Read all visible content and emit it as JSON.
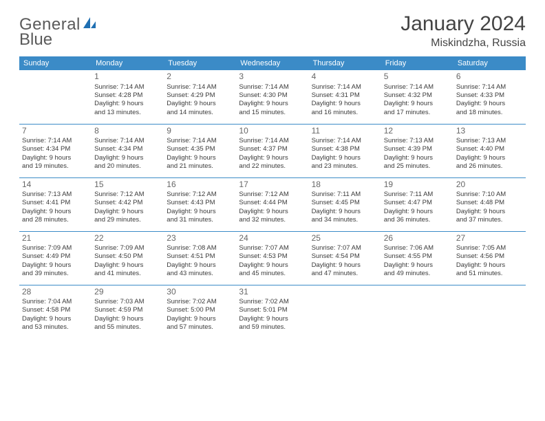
{
  "logo": {
    "word1": "General",
    "word2": "Blue"
  },
  "title": "January 2024",
  "location": "Miskindzha, Russia",
  "day_headers": [
    "Sunday",
    "Monday",
    "Tuesday",
    "Wednesday",
    "Thursday",
    "Friday",
    "Saturday"
  ],
  "colors": {
    "header_bg": "#3b8bc7",
    "header_text": "#ffffff",
    "rule": "#3b8bc7",
    "text": "#3a3a3a",
    "daynum": "#666666",
    "logo_gray": "#5a5a5a",
    "logo_blue": "#1f6fb2"
  },
  "weeks": [
    [
      {
        "n": "",
        "a": "",
        "b": "",
        "c": "",
        "d": ""
      },
      {
        "n": "1",
        "a": "Sunrise: 7:14 AM",
        "b": "Sunset: 4:28 PM",
        "c": "Daylight: 9 hours",
        "d": "and 13 minutes."
      },
      {
        "n": "2",
        "a": "Sunrise: 7:14 AM",
        "b": "Sunset: 4:29 PM",
        "c": "Daylight: 9 hours",
        "d": "and 14 minutes."
      },
      {
        "n": "3",
        "a": "Sunrise: 7:14 AM",
        "b": "Sunset: 4:30 PM",
        "c": "Daylight: 9 hours",
        "d": "and 15 minutes."
      },
      {
        "n": "4",
        "a": "Sunrise: 7:14 AM",
        "b": "Sunset: 4:31 PM",
        "c": "Daylight: 9 hours",
        "d": "and 16 minutes."
      },
      {
        "n": "5",
        "a": "Sunrise: 7:14 AM",
        "b": "Sunset: 4:32 PM",
        "c": "Daylight: 9 hours",
        "d": "and 17 minutes."
      },
      {
        "n": "6",
        "a": "Sunrise: 7:14 AM",
        "b": "Sunset: 4:33 PM",
        "c": "Daylight: 9 hours",
        "d": "and 18 minutes."
      }
    ],
    [
      {
        "n": "7",
        "a": "Sunrise: 7:14 AM",
        "b": "Sunset: 4:34 PM",
        "c": "Daylight: 9 hours",
        "d": "and 19 minutes."
      },
      {
        "n": "8",
        "a": "Sunrise: 7:14 AM",
        "b": "Sunset: 4:34 PM",
        "c": "Daylight: 9 hours",
        "d": "and 20 minutes."
      },
      {
        "n": "9",
        "a": "Sunrise: 7:14 AM",
        "b": "Sunset: 4:35 PM",
        "c": "Daylight: 9 hours",
        "d": "and 21 minutes."
      },
      {
        "n": "10",
        "a": "Sunrise: 7:14 AM",
        "b": "Sunset: 4:37 PM",
        "c": "Daylight: 9 hours",
        "d": "and 22 minutes."
      },
      {
        "n": "11",
        "a": "Sunrise: 7:14 AM",
        "b": "Sunset: 4:38 PM",
        "c": "Daylight: 9 hours",
        "d": "and 23 minutes."
      },
      {
        "n": "12",
        "a": "Sunrise: 7:13 AM",
        "b": "Sunset: 4:39 PM",
        "c": "Daylight: 9 hours",
        "d": "and 25 minutes."
      },
      {
        "n": "13",
        "a": "Sunrise: 7:13 AM",
        "b": "Sunset: 4:40 PM",
        "c": "Daylight: 9 hours",
        "d": "and 26 minutes."
      }
    ],
    [
      {
        "n": "14",
        "a": "Sunrise: 7:13 AM",
        "b": "Sunset: 4:41 PM",
        "c": "Daylight: 9 hours",
        "d": "and 28 minutes."
      },
      {
        "n": "15",
        "a": "Sunrise: 7:12 AM",
        "b": "Sunset: 4:42 PM",
        "c": "Daylight: 9 hours",
        "d": "and 29 minutes."
      },
      {
        "n": "16",
        "a": "Sunrise: 7:12 AM",
        "b": "Sunset: 4:43 PM",
        "c": "Daylight: 9 hours",
        "d": "and 31 minutes."
      },
      {
        "n": "17",
        "a": "Sunrise: 7:12 AM",
        "b": "Sunset: 4:44 PM",
        "c": "Daylight: 9 hours",
        "d": "and 32 minutes."
      },
      {
        "n": "18",
        "a": "Sunrise: 7:11 AM",
        "b": "Sunset: 4:45 PM",
        "c": "Daylight: 9 hours",
        "d": "and 34 minutes."
      },
      {
        "n": "19",
        "a": "Sunrise: 7:11 AM",
        "b": "Sunset: 4:47 PM",
        "c": "Daylight: 9 hours",
        "d": "and 36 minutes."
      },
      {
        "n": "20",
        "a": "Sunrise: 7:10 AM",
        "b": "Sunset: 4:48 PM",
        "c": "Daylight: 9 hours",
        "d": "and 37 minutes."
      }
    ],
    [
      {
        "n": "21",
        "a": "Sunrise: 7:09 AM",
        "b": "Sunset: 4:49 PM",
        "c": "Daylight: 9 hours",
        "d": "and 39 minutes."
      },
      {
        "n": "22",
        "a": "Sunrise: 7:09 AM",
        "b": "Sunset: 4:50 PM",
        "c": "Daylight: 9 hours",
        "d": "and 41 minutes."
      },
      {
        "n": "23",
        "a": "Sunrise: 7:08 AM",
        "b": "Sunset: 4:51 PM",
        "c": "Daylight: 9 hours",
        "d": "and 43 minutes."
      },
      {
        "n": "24",
        "a": "Sunrise: 7:07 AM",
        "b": "Sunset: 4:53 PM",
        "c": "Daylight: 9 hours",
        "d": "and 45 minutes."
      },
      {
        "n": "25",
        "a": "Sunrise: 7:07 AM",
        "b": "Sunset: 4:54 PM",
        "c": "Daylight: 9 hours",
        "d": "and 47 minutes."
      },
      {
        "n": "26",
        "a": "Sunrise: 7:06 AM",
        "b": "Sunset: 4:55 PM",
        "c": "Daylight: 9 hours",
        "d": "and 49 minutes."
      },
      {
        "n": "27",
        "a": "Sunrise: 7:05 AM",
        "b": "Sunset: 4:56 PM",
        "c": "Daylight: 9 hours",
        "d": "and 51 minutes."
      }
    ],
    [
      {
        "n": "28",
        "a": "Sunrise: 7:04 AM",
        "b": "Sunset: 4:58 PM",
        "c": "Daylight: 9 hours",
        "d": "and 53 minutes."
      },
      {
        "n": "29",
        "a": "Sunrise: 7:03 AM",
        "b": "Sunset: 4:59 PM",
        "c": "Daylight: 9 hours",
        "d": "and 55 minutes."
      },
      {
        "n": "30",
        "a": "Sunrise: 7:02 AM",
        "b": "Sunset: 5:00 PM",
        "c": "Daylight: 9 hours",
        "d": "and 57 minutes."
      },
      {
        "n": "31",
        "a": "Sunrise: 7:02 AM",
        "b": "Sunset: 5:01 PM",
        "c": "Daylight: 9 hours",
        "d": "and 59 minutes."
      },
      {
        "n": "",
        "a": "",
        "b": "",
        "c": "",
        "d": ""
      },
      {
        "n": "",
        "a": "",
        "b": "",
        "c": "",
        "d": ""
      },
      {
        "n": "",
        "a": "",
        "b": "",
        "c": "",
        "d": ""
      }
    ]
  ]
}
